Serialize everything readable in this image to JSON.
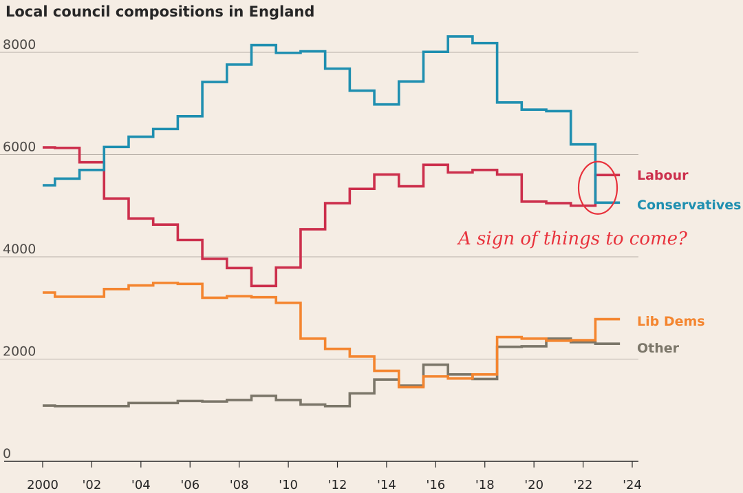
{
  "chart_data": {
    "type": "line",
    "title": "Local council compositions in England",
    "xlabel": "",
    "ylabel": "",
    "ylim": [
      0,
      8000
    ],
    "xlim": [
      2000,
      2024
    ],
    "yticks": [
      {
        "value": 0,
        "label": "0"
      },
      {
        "value": 2000,
        "label": "2000"
      },
      {
        "value": 4000,
        "label": "4000"
      },
      {
        "value": 6000,
        "label": "6000"
      },
      {
        "value": 8000,
        "label": "8000"
      }
    ],
    "xticks": [
      {
        "value": 2000,
        "label": "2000"
      },
      {
        "value": 2002,
        "label": "'02"
      },
      {
        "value": 2004,
        "label": "'04"
      },
      {
        "value": 2006,
        "label": "'06"
      },
      {
        "value": 2008,
        "label": "'08"
      },
      {
        "value": 2010,
        "label": "'10"
      },
      {
        "value": 2012,
        "label": "'12"
      },
      {
        "value": 2014,
        "label": "'14"
      },
      {
        "value": 2016,
        "label": "'16"
      },
      {
        "value": 2018,
        "label": "'18"
      },
      {
        "value": 2020,
        "label": "'20"
      },
      {
        "value": 2022,
        "label": "'22"
      },
      {
        "value": 2024,
        "label": "'24"
      }
    ],
    "grid": true,
    "step": true,
    "x": [
      2000,
      2001,
      2002,
      2003,
      2004,
      2005,
      2006,
      2007,
      2008,
      2009,
      2010,
      2011,
      2012,
      2013,
      2014,
      2015,
      2016,
      2017,
      2018,
      2019,
      2020,
      2021,
      2022,
      2023
    ],
    "series": [
      {
        "name": "Conservatives",
        "color": "#1f8fb0",
        "values": [
          5400,
          5530,
          5700,
          6150,
          6350,
          6500,
          6750,
          7420,
          7760,
          8140,
          7990,
          8020,
          7680,
          7250,
          6980,
          7430,
          8010,
          8310,
          8180,
          7020,
          6880,
          6850,
          6200,
          5060
        ]
      },
      {
        "name": "Labour",
        "color": "#cc2f4c",
        "values": [
          6140,
          6130,
          5850,
          5140,
          4750,
          4630,
          4330,
          3960,
          3780,
          3430,
          3790,
          4540,
          5050,
          5330,
          5610,
          5380,
          5800,
          5650,
          5700,
          5610,
          5080,
          5050,
          5000,
          5600
        ]
      },
      {
        "name": "Lib Dems",
        "color": "#f4852f",
        "values": [
          3300,
          3220,
          3220,
          3370,
          3440,
          3490,
          3470,
          3200,
          3230,
          3210,
          3100,
          2400,
          2200,
          2050,
          1770,
          1450,
          1660,
          1620,
          1700,
          2430,
          2400,
          2360,
          2370,
          2780
        ]
      },
      {
        "name": "Other",
        "color": "#7b7669",
        "values": [
          1090,
          1080,
          1080,
          1080,
          1140,
          1140,
          1180,
          1170,
          1200,
          1280,
          1200,
          1110,
          1080,
          1330,
          1600,
          1480,
          1890,
          1700,
          1610,
          2240,
          2250,
          2400,
          2330,
          2300
        ]
      }
    ],
    "annotation": {
      "text": "A sign of things to come?",
      "color": "#e8323c"
    }
  }
}
